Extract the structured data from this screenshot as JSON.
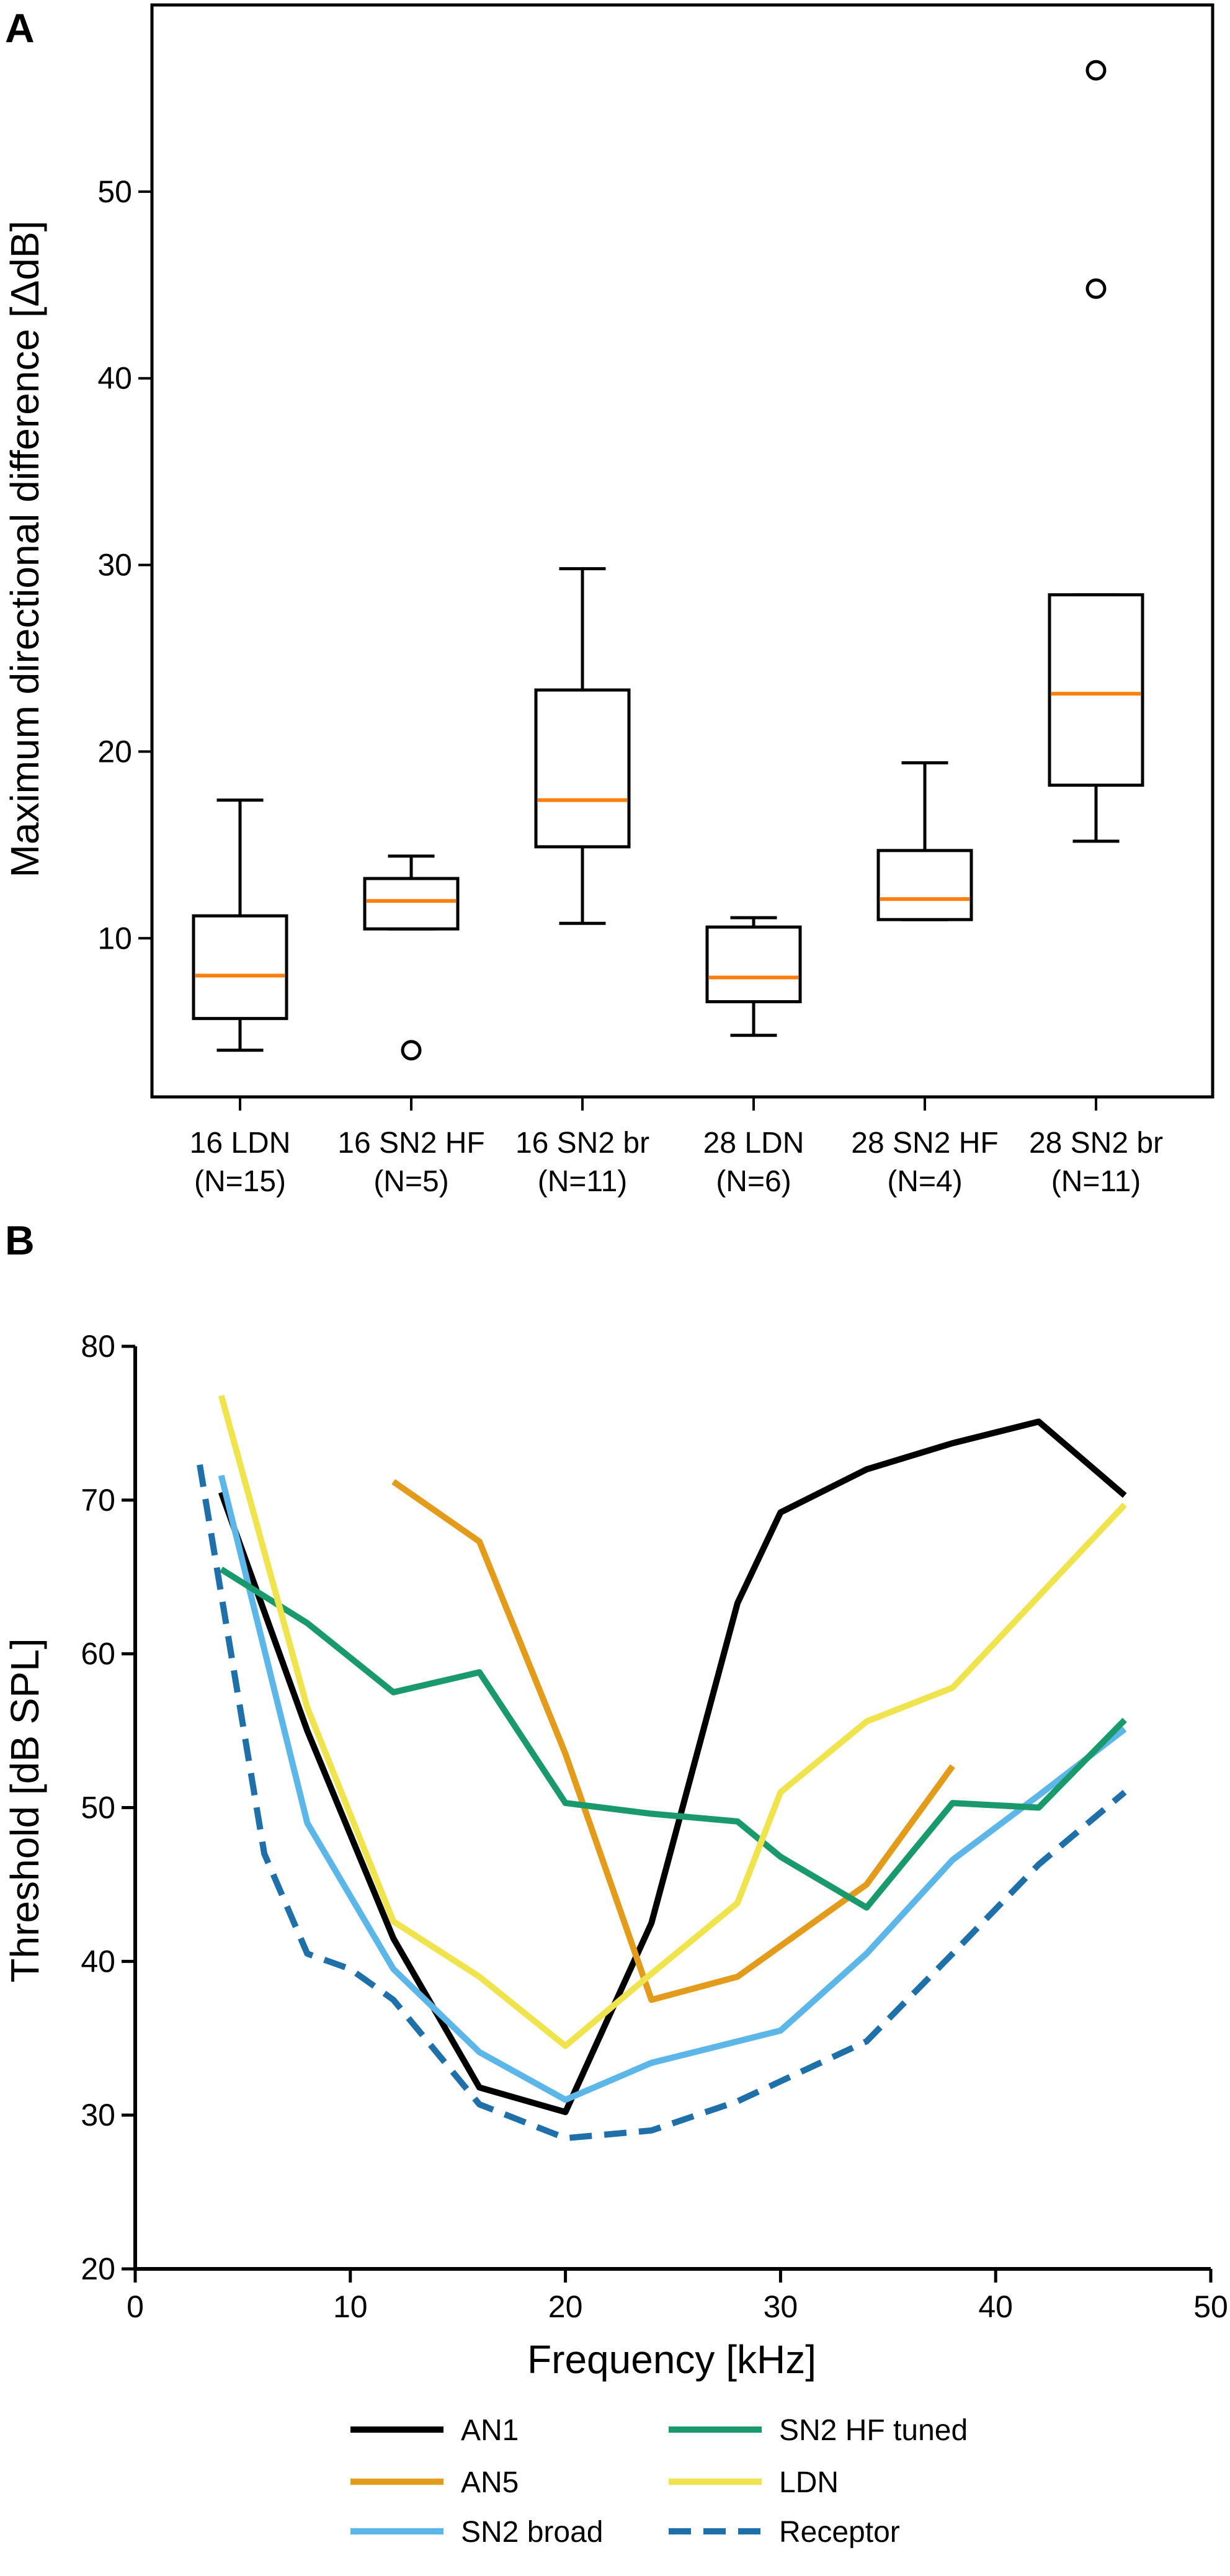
{
  "chart_data": [
    {
      "panel": "A",
      "type": "box",
      "ylabel": "Maximum directional difference [ΔdB]",
      "ylim": [
        1.5,
        60
      ],
      "yticks": [
        10,
        20,
        30,
        40,
        50
      ],
      "median_color": "#ff7f0e",
      "boxes": [
        {
          "label1": "16 LDN",
          "label2": "(N=15)",
          "whisker_low": 4.0,
          "q1": 5.7,
          "median": 8.0,
          "q3": 11.2,
          "whisker_high": 17.4,
          "outliers": []
        },
        {
          "label1": "16 SN2 HF",
          "label2": "(N=5)",
          "whisker_low": 10.5,
          "q1": 10.5,
          "median": 12.0,
          "q3": 13.2,
          "whisker_high": 14.4,
          "outliers": [
            4.0
          ]
        },
        {
          "label1": "16 SN2 br",
          "label2": "(N=11)",
          "whisker_low": 10.8,
          "q1": 14.9,
          "median": 17.4,
          "q3": 23.3,
          "whisker_high": 29.8,
          "outliers": []
        },
        {
          "label1": "28 LDN",
          "label2": "(N=6)",
          "whisker_low": 4.8,
          "q1": 6.6,
          "median": 7.9,
          "q3": 10.6,
          "whisker_high": 11.1,
          "outliers": []
        },
        {
          "label1": "28 SN2 HF",
          "label2": "(N=4)",
          "whisker_low": 11.0,
          "q1": 11.0,
          "median": 12.1,
          "q3": 14.7,
          "whisker_high": 19.4,
          "outliers": []
        },
        {
          "label1": "28 SN2 br",
          "label2": "(N=11)",
          "whisker_low": 15.2,
          "q1": 18.2,
          "median": 23.1,
          "q3": 28.4,
          "whisker_high": 28.4,
          "outliers": [
            44.8,
            56.5
          ]
        }
      ]
    },
    {
      "panel": "B",
      "type": "line",
      "xlabel": "Frequency [kHz]",
      "ylabel": "Threshold [dB SPL]",
      "xlim": [
        0,
        50
      ],
      "ylim": [
        20,
        80
      ],
      "xticks": [
        0,
        10,
        20,
        30,
        40,
        50
      ],
      "yticks": [
        20,
        30,
        40,
        50,
        60,
        70,
        80
      ],
      "series": [
        {
          "name": "AN1",
          "color": "#000000",
          "dashed": false,
          "x": [
            4,
            8,
            12,
            16,
            20,
            24,
            28,
            30,
            34,
            38,
            42,
            46
          ],
          "y": [
            70.5,
            55.0,
            41.5,
            31.8,
            30.2,
            42.5,
            63.3,
            69.2,
            72.0,
            73.7,
            75.1,
            70.3
          ]
        },
        {
          "name": "AN5",
          "color": "#e39b1b",
          "dashed": false,
          "x": [
            12,
            16,
            20,
            24,
            28,
            34,
            38
          ],
          "y": [
            71.2,
            67.3,
            53.5,
            37.5,
            39.0,
            45.0,
            52.7
          ]
        },
        {
          "name": "SN2 broad",
          "color": "#5db6e8",
          "dashed": false,
          "x": [
            4,
            8,
            12,
            16,
            20,
            24,
            30,
            34,
            38,
            42,
            46
          ],
          "y": [
            71.6,
            49.0,
            39.5,
            34.1,
            31.0,
            33.4,
            35.5,
            40.5,
            46.6,
            50.8,
            55.1
          ]
        },
        {
          "name": "SN2 HF tuned",
          "color": "#1a9a6c",
          "dashed": false,
          "x": [
            4,
            8,
            12,
            16,
            20,
            24,
            28,
            30,
            34,
            38,
            42,
            46
          ],
          "y": [
            65.5,
            62.0,
            57.5,
            58.8,
            50.3,
            49.6,
            49.1,
            46.8,
            43.5,
            50.3,
            50.0,
            55.7
          ]
        },
        {
          "name": "LDN",
          "color": "#efe44d",
          "dashed": false,
          "x": [
            4,
            8,
            12,
            16,
            20,
            24,
            28,
            30,
            34,
            38,
            46
          ],
          "y": [
            76.8,
            56.5,
            42.6,
            39.0,
            34.5,
            39.2,
            43.8,
            51.0,
            55.6,
            57.8,
            69.7
          ]
        },
        {
          "name": "Receptor",
          "color": "#1f70a8",
          "dashed": true,
          "x": [
            3,
            6,
            8,
            10,
            12,
            16,
            20,
            24,
            28,
            34,
            38,
            42,
            46
          ],
          "y": [
            72.3,
            47.0,
            40.5,
            39.5,
            37.5,
            30.7,
            28.5,
            29.0,
            30.9,
            34.8,
            40.5,
            46.3,
            51.0
          ]
        }
      ],
      "legend_rows": [
        [
          "AN1",
          "SN2 HF tuned"
        ],
        [
          "AN5",
          "LDN"
        ],
        [
          "SN2 broad",
          "Receptor"
        ]
      ]
    }
  ]
}
